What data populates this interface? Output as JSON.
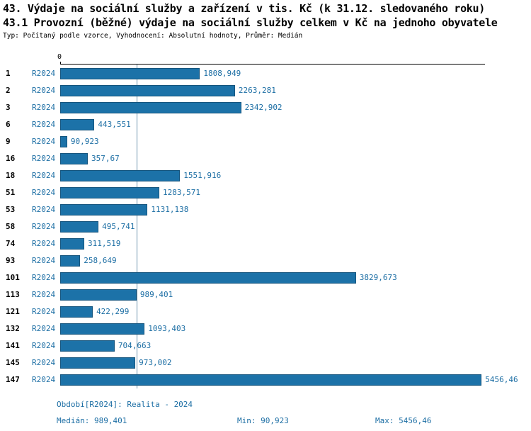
{
  "header": {
    "title1": "43. Výdaje na sociální služby a zařízení v tis. Kč (k 31.12. sledovaného roku)",
    "title2": "43.1 Provozní (běžné) výdaje na sociální služby celkem v Kč na jednoho obyvatele",
    "subtitle": "Typ: Počítaný podle vzorce, Vyhodnocení: Absolutní hodnoty, Průměr: Medián"
  },
  "chart_data": {
    "type": "bar",
    "orientation": "horizontal",
    "title": "43.1 Provozní (běžné) výdaje na sociální služby celkem v Kč na jednoho obyvatele",
    "series_label": "R2024",
    "categories": [
      "1",
      "2",
      "3",
      "6",
      "9",
      "16",
      "18",
      "51",
      "53",
      "58",
      "74",
      "93",
      "101",
      "113",
      "121",
      "132",
      "141",
      "145",
      "147"
    ],
    "values": [
      1808.949,
      2263.281,
      2342.902,
      443.551,
      90.923,
      357.67,
      1551.916,
      1283.571,
      1131.138,
      495.741,
      311.519,
      258.649,
      3829.673,
      989.401,
      422.299,
      1093.403,
      704.663,
      973.002,
      5456.46
    ],
    "value_labels": [
      "1808,949",
      "2263,281",
      "2342,902",
      "443,551",
      "90,923",
      "357,67",
      "1551,916",
      "1283,571",
      "1131,138",
      "495,741",
      "311,519",
      "258,649",
      "3829,673",
      "989,401",
      "422,299",
      "1093,403",
      "704,663",
      "973,002",
      "5456,46"
    ],
    "xlim": [
      0,
      5500
    ],
    "axis_zero_label": "0",
    "axis_position": "top",
    "grid": false,
    "median_reference": 989.401,
    "legend_position": "none"
  },
  "footer": {
    "period": "Období[R2024]: Realita - 2024",
    "median": "Medián: 989,401",
    "min": "Min: 90,923",
    "max": "Max: 5456,46"
  },
  "colors": {
    "bar": "#1c72a8",
    "accent_text": "#1c6ea4",
    "median_line": "#6b93ad",
    "axis": "#000000"
  }
}
